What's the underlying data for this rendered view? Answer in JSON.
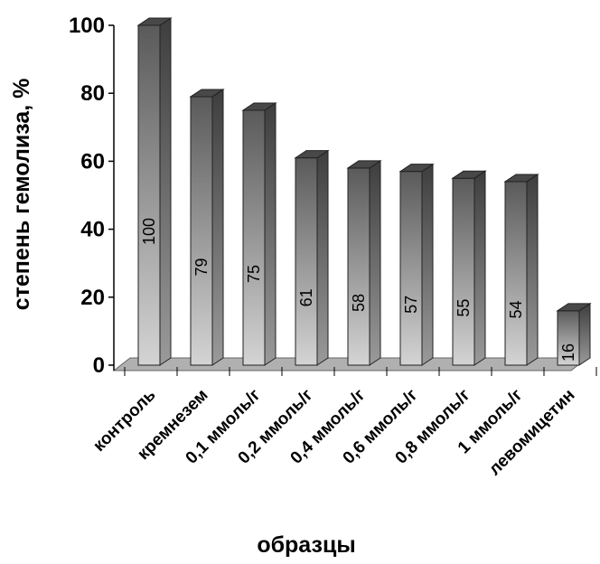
{
  "chart_data": {
    "type": "bar",
    "title": "",
    "xlabel": "образцы",
    "ylabel": "степень гемолиза, %",
    "categories": [
      "контроль",
      "кремнезем",
      "0,1 ммоль/г",
      "0,2 ммоль/г",
      "0,4 ммоль/г",
      "0,6 ммоль/г",
      "0,8 ммоль/г",
      "1 ммоль/г",
      "левомицетин"
    ],
    "values": [
      100,
      79,
      75,
      61,
      58,
      57,
      55,
      54,
      16
    ],
    "data_labels": [
      "100",
      "79",
      "75",
      "61",
      "58",
      "57",
      "55",
      "54",
      "16"
    ],
    "ylim": [
      0,
      100
    ],
    "yticks": [
      "0",
      "20",
      "40",
      "60",
      "80",
      "100"
    ],
    "grid": false,
    "legend": "none",
    "style": "3d-column",
    "colors": {
      "bar_dark": "#5a5a5a",
      "bar_light": "#d4d4d4",
      "floor": "#b0b0b0"
    }
  }
}
